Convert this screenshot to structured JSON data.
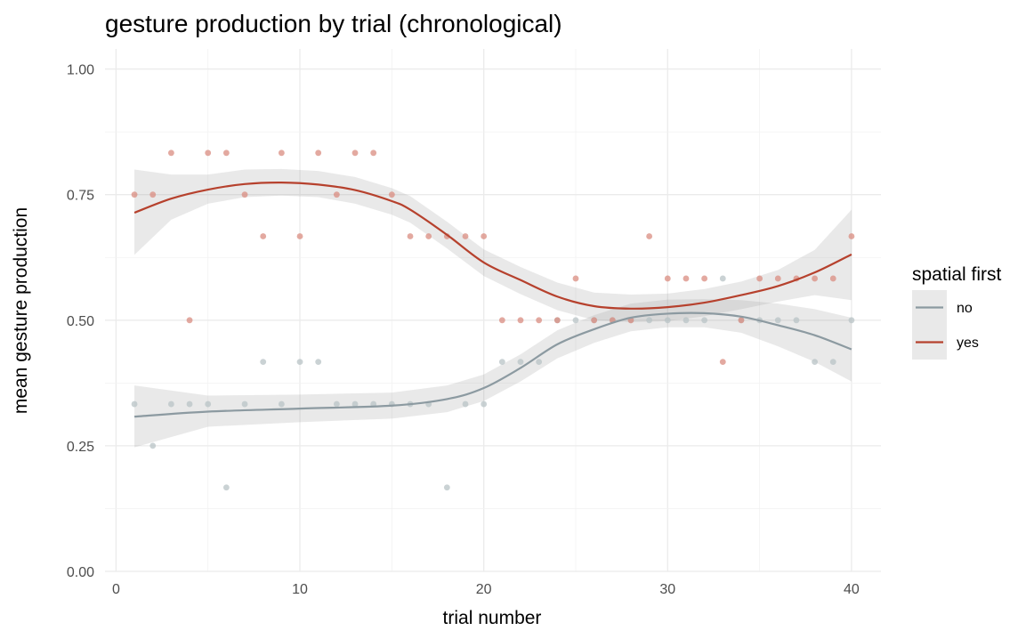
{
  "chart_data": {
    "type": "scatter",
    "title": "gesture production by trial (chronological)",
    "xlabel": "trial number",
    "ylabel": "mean gesture production",
    "xlim": [
      -0.6,
      41.6
    ],
    "ylim": [
      0,
      1.04
    ],
    "x_ticks": [
      0,
      10,
      20,
      30,
      40
    ],
    "x_tick_labels": [
      "0",
      "10",
      "20",
      "30",
      "40"
    ],
    "y_ticks": [
      0,
      0.25,
      0.5,
      0.75,
      1
    ],
    "y_tick_labels": [
      "0.00",
      "0.25",
      "0.50",
      "0.75",
      "1.00"
    ],
    "grid": true,
    "legend": {
      "title": "spatial first",
      "position": "right",
      "labels": [
        "no",
        "yes"
      ]
    },
    "series": [
      {
        "name": "no",
        "color": "#8c9aa1",
        "point_color": "#b8c3c5",
        "points": [
          [
            1,
            0.333
          ],
          [
            2,
            0.25
          ],
          [
            3,
            0.333
          ],
          [
            4,
            0.333
          ],
          [
            5,
            0.333
          ],
          [
            6,
            0.167
          ],
          [
            7,
            0.333
          ],
          [
            8,
            0.417
          ],
          [
            9,
            0.333
          ],
          [
            10,
            0.417
          ],
          [
            11,
            0.417
          ],
          [
            12,
            0.333
          ],
          [
            13,
            0.333
          ],
          [
            14,
            0.333
          ],
          [
            15,
            0.333
          ],
          [
            16,
            0.333
          ],
          [
            17,
            0.333
          ],
          [
            18,
            0.167
          ],
          [
            19,
            0.333
          ],
          [
            20,
            0.333
          ],
          [
            21,
            0.417
          ],
          [
            22,
            0.417
          ],
          [
            23,
            0.417
          ],
          [
            24,
            0.5
          ],
          [
            25,
            0.5
          ],
          [
            26,
            0.5
          ],
          [
            27,
            0.5
          ],
          [
            28,
            0.5
          ],
          [
            29,
            0.5
          ],
          [
            30,
            0.5
          ],
          [
            31,
            0.5
          ],
          [
            32,
            0.5
          ],
          [
            33,
            0.583
          ],
          [
            34,
            0.5
          ],
          [
            35,
            0.5
          ],
          [
            36,
            0.5
          ],
          [
            37,
            0.5
          ],
          [
            38,
            0.417
          ],
          [
            39,
            0.417
          ],
          [
            40,
            0.5
          ]
        ],
        "smooth": [
          [
            1,
            0.308
          ],
          [
            5,
            0.318
          ],
          [
            10,
            0.324
          ],
          [
            15,
            0.33
          ],
          [
            18,
            0.343
          ],
          [
            20,
            0.365
          ],
          [
            22,
            0.405
          ],
          [
            24,
            0.452
          ],
          [
            26,
            0.482
          ],
          [
            28,
            0.505
          ],
          [
            30,
            0.513
          ],
          [
            32,
            0.514
          ],
          [
            34,
            0.507
          ],
          [
            36,
            0.49
          ],
          [
            38,
            0.47
          ],
          [
            40,
            0.442
          ]
        ],
        "band": [
          [
            1,
            0.247,
            0.37
          ],
          [
            5,
            0.288,
            0.35
          ],
          [
            10,
            0.297,
            0.352
          ],
          [
            15,
            0.304,
            0.356
          ],
          [
            18,
            0.317,
            0.37
          ],
          [
            20,
            0.339,
            0.392
          ],
          [
            22,
            0.378,
            0.432
          ],
          [
            24,
            0.424,
            0.48
          ],
          [
            26,
            0.455,
            0.51
          ],
          [
            28,
            0.478,
            0.533
          ],
          [
            30,
            0.486,
            0.541
          ],
          [
            32,
            0.486,
            0.542
          ],
          [
            34,
            0.475,
            0.54
          ],
          [
            36,
            0.448,
            0.533
          ],
          [
            38,
            0.417,
            0.522
          ],
          [
            40,
            0.378,
            0.505
          ]
        ]
      },
      {
        "name": "yes",
        "color": "#b6412d",
        "point_color": "#d98c80",
        "points": [
          [
            1,
            0.75
          ],
          [
            2,
            0.75
          ],
          [
            3,
            0.833
          ],
          [
            4,
            0.5
          ],
          [
            5,
            0.833
          ],
          [
            6,
            0.833
          ],
          [
            7,
            0.75
          ],
          [
            8,
            0.667
          ],
          [
            9,
            0.833
          ],
          [
            10,
            0.667
          ],
          [
            11,
            0.833
          ],
          [
            12,
            0.75
          ],
          [
            13,
            0.833
          ],
          [
            14,
            0.833
          ],
          [
            15,
            0.75
          ],
          [
            16,
            0.667
          ],
          [
            17,
            0.667
          ],
          [
            18,
            0.667
          ],
          [
            19,
            0.667
          ],
          [
            20,
            0.667
          ],
          [
            21,
            0.5
          ],
          [
            22,
            0.5
          ],
          [
            23,
            0.5
          ],
          [
            24,
            0.5
          ],
          [
            25,
            0.583
          ],
          [
            26,
            0.5
          ],
          [
            27,
            0.5
          ],
          [
            28,
            0.5
          ],
          [
            29,
            0.667
          ],
          [
            30,
            0.583
          ],
          [
            31,
            0.583
          ],
          [
            32,
            0.583
          ],
          [
            33,
            0.417
          ],
          [
            34,
            0.5
          ],
          [
            35,
            0.583
          ],
          [
            36,
            0.583
          ],
          [
            37,
            0.583
          ],
          [
            38,
            0.583
          ],
          [
            39,
            0.583
          ],
          [
            40,
            0.667
          ]
        ],
        "smooth": [
          [
            1,
            0.714
          ],
          [
            3,
            0.742
          ],
          [
            5,
            0.76
          ],
          [
            7,
            0.771
          ],
          [
            9,
            0.774
          ],
          [
            11,
            0.77
          ],
          [
            13,
            0.759
          ],
          [
            15,
            0.737
          ],
          [
            16,
            0.72
          ],
          [
            18,
            0.67
          ],
          [
            20,
            0.615
          ],
          [
            22,
            0.58
          ],
          [
            24,
            0.547
          ],
          [
            26,
            0.528
          ],
          [
            28,
            0.523
          ],
          [
            30,
            0.526
          ],
          [
            32,
            0.535
          ],
          [
            34,
            0.55
          ],
          [
            36,
            0.568
          ],
          [
            38,
            0.595
          ],
          [
            40,
            0.631
          ]
        ],
        "band": [
          [
            1,
            0.63,
            0.8
          ],
          [
            3,
            0.7,
            0.79
          ],
          [
            5,
            0.732,
            0.79
          ],
          [
            7,
            0.745,
            0.8
          ],
          [
            9,
            0.748,
            0.801
          ],
          [
            11,
            0.745,
            0.797
          ],
          [
            13,
            0.732,
            0.785
          ],
          [
            15,
            0.71,
            0.763
          ],
          [
            16,
            0.694,
            0.747
          ],
          [
            18,
            0.643,
            0.696
          ],
          [
            20,
            0.588,
            0.641
          ],
          [
            22,
            0.552,
            0.606
          ],
          [
            24,
            0.52,
            0.575
          ],
          [
            26,
            0.5,
            0.555
          ],
          [
            28,
            0.496,
            0.551
          ],
          [
            30,
            0.498,
            0.553
          ],
          [
            32,
            0.508,
            0.562
          ],
          [
            34,
            0.522,
            0.577
          ],
          [
            36,
            0.537,
            0.6
          ],
          [
            38,
            0.55,
            0.64
          ],
          [
            40,
            0.54,
            0.72
          ]
        ]
      }
    ]
  }
}
